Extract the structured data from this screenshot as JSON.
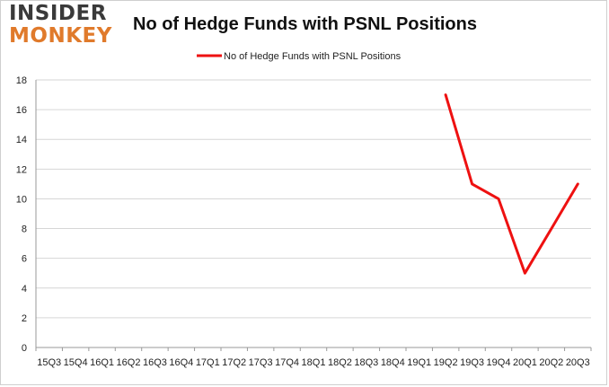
{
  "brand": {
    "line1": "INSIDER",
    "line2": "MONKEY"
  },
  "colors": {
    "series": "#ee1111",
    "grid": "#d6d6d6",
    "axis": "#999999"
  },
  "chart_data": {
    "type": "line",
    "title": "No of Hedge Funds with PSNL Positions",
    "xlabel": "",
    "ylabel": "",
    "ylim": [
      0,
      18
    ],
    "yticks": [
      0,
      2,
      4,
      6,
      8,
      10,
      12,
      14,
      16,
      18
    ],
    "grid": true,
    "legend_position": "top-center",
    "categories": [
      "15Q3",
      "15Q4",
      "16Q1",
      "16Q2",
      "16Q3",
      "16Q4",
      "17Q1",
      "17Q2",
      "17Q3",
      "17Q4",
      "18Q1",
      "18Q2",
      "18Q3",
      "18Q4",
      "19Q1",
      "19Q2",
      "19Q3",
      "19Q4",
      "20Q1",
      "20Q2",
      "20Q3"
    ],
    "series": [
      {
        "name": "No of Hedge Funds with PSNL Positions",
        "values": [
          null,
          null,
          null,
          null,
          null,
          null,
          null,
          null,
          null,
          null,
          null,
          null,
          null,
          null,
          null,
          17,
          11,
          10,
          5,
          8,
          11
        ]
      }
    ]
  }
}
